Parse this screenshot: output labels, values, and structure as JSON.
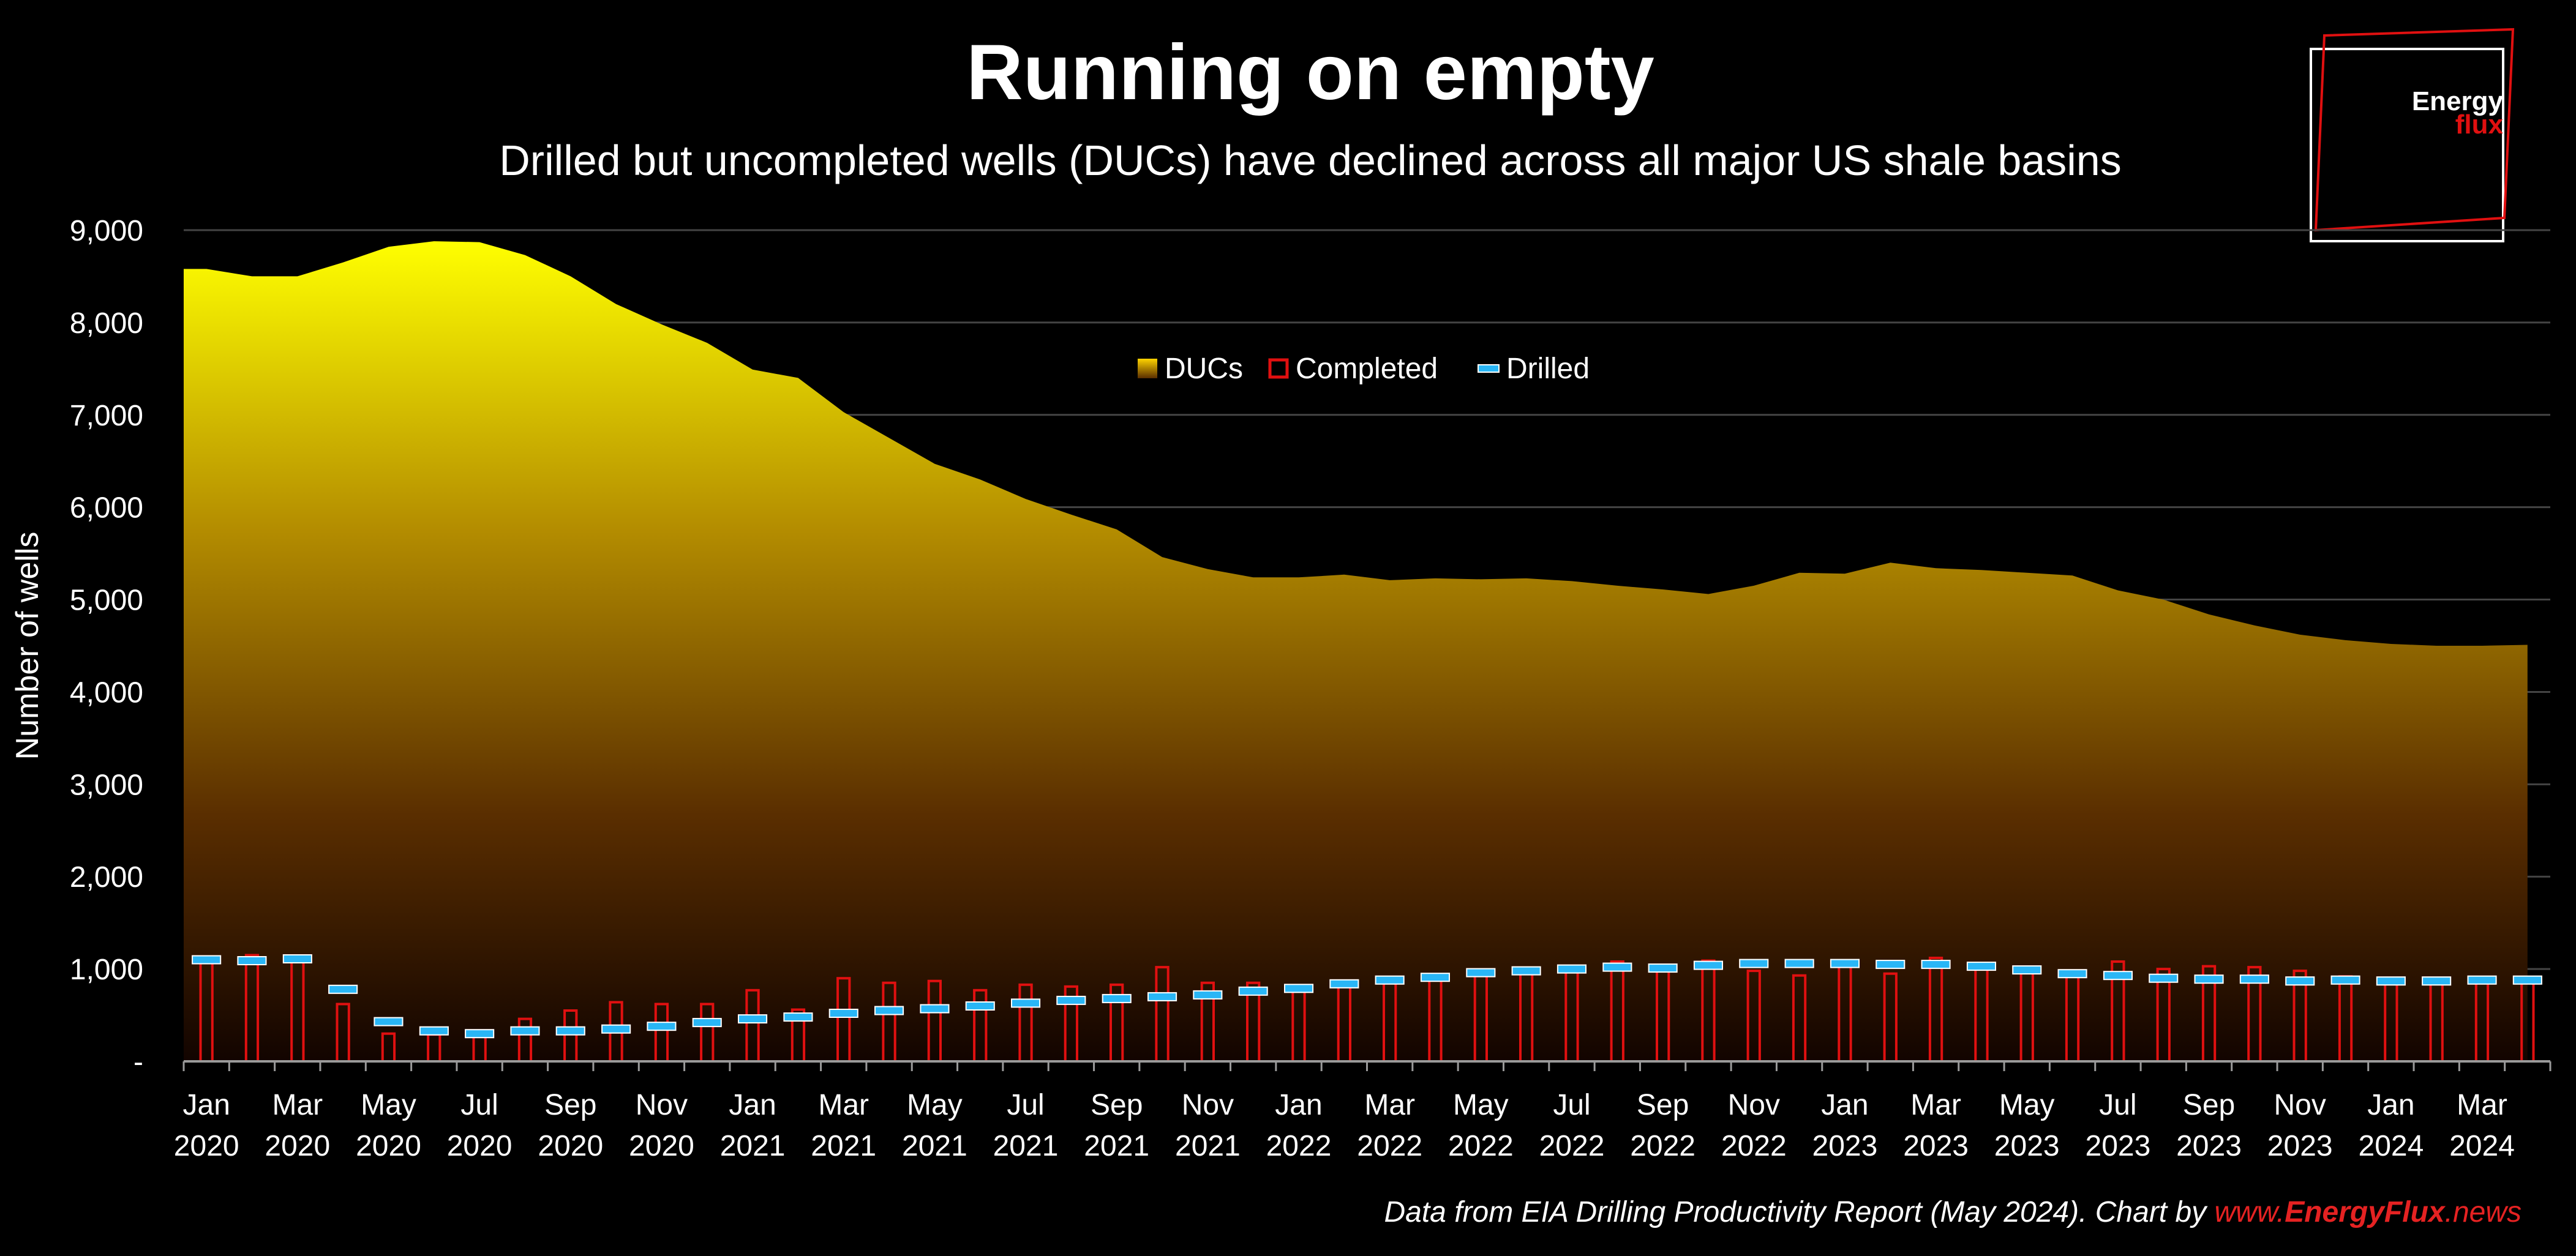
{
  "chart_data": {
    "type": "area",
    "title": "Running on empty",
    "subtitle": "Drilled but uncompleted wells (DUCs) have declined across all major US shale basins",
    "ylabel": "Number of wells",
    "ylim": [
      0,
      9000
    ],
    "yticks": [
      {
        "value": 0,
        "label": "-"
      },
      {
        "value": 1000,
        "label": "1,000"
      },
      {
        "value": 2000,
        "label": "2,000"
      },
      {
        "value": 3000,
        "label": "3,000"
      },
      {
        "value": 4000,
        "label": "4,000"
      },
      {
        "value": 5000,
        "label": "5,000"
      },
      {
        "value": 6000,
        "label": "6,000"
      },
      {
        "value": 7000,
        "label": "7,000"
      },
      {
        "value": 8000,
        "label": "8,000"
      },
      {
        "value": 9000,
        "label": "9,000"
      }
    ],
    "grid": true,
    "legend_position": "top-center",
    "x_tick_labels": [
      {
        "index": 0,
        "month": "Jan",
        "year": "2020"
      },
      {
        "index": 2,
        "month": "Mar",
        "year": "2020"
      },
      {
        "index": 4,
        "month": "May",
        "year": "2020"
      },
      {
        "index": 6,
        "month": "Jul",
        "year": "2020"
      },
      {
        "index": 8,
        "month": "Sep",
        "year": "2020"
      },
      {
        "index": 10,
        "month": "Nov",
        "year": "2020"
      },
      {
        "index": 12,
        "month": "Jan",
        "year": "2021"
      },
      {
        "index": 14,
        "month": "Mar",
        "year": "2021"
      },
      {
        "index": 16,
        "month": "May",
        "year": "2021"
      },
      {
        "index": 18,
        "month": "Jul",
        "year": "2021"
      },
      {
        "index": 20,
        "month": "Sep",
        "year": "2021"
      },
      {
        "index": 22,
        "month": "Nov",
        "year": "2021"
      },
      {
        "index": 24,
        "month": "Jan",
        "year": "2022"
      },
      {
        "index": 26,
        "month": "Mar",
        "year": "2022"
      },
      {
        "index": 28,
        "month": "May",
        "year": "2022"
      },
      {
        "index": 30,
        "month": "Jul",
        "year": "2022"
      },
      {
        "index": 32,
        "month": "Sep",
        "year": "2022"
      },
      {
        "index": 34,
        "month": "Nov",
        "year": "2022"
      },
      {
        "index": 36,
        "month": "Jan",
        "year": "2023"
      },
      {
        "index": 38,
        "month": "Mar",
        "year": "2023"
      },
      {
        "index": 40,
        "month": "May",
        "year": "2023"
      },
      {
        "index": 42,
        "month": "Jul",
        "year": "2023"
      },
      {
        "index": 44,
        "month": "Sep",
        "year": "2023"
      },
      {
        "index": 46,
        "month": "Nov",
        "year": "2023"
      },
      {
        "index": 48,
        "month": "Jan",
        "year": "2024"
      },
      {
        "index": 50,
        "month": "Mar",
        "year": "2024"
      }
    ],
    "series": [
      {
        "name": "DUCs",
        "kind": "area",
        "values": [
          8580,
          8500,
          8500,
          8650,
          8820,
          8880,
          8870,
          8730,
          8500,
          8200,
          7980,
          7780,
          7490,
          7400,
          7030,
          6750,
          6470,
          6300,
          6090,
          5920,
          5760,
          5460,
          5330,
          5240,
          5240,
          5270,
          5210,
          5230,
          5220,
          5230,
          5200,
          5150,
          5110,
          5060,
          5150,
          5290,
          5280,
          5400,
          5340,
          5320,
          5290,
          5260,
          5100,
          5000,
          4840,
          4720,
          4620,
          4560,
          4520,
          4500,
          4500,
          4510
        ]
      },
      {
        "name": "Completed",
        "kind": "bar",
        "values": [
          1110,
          1150,
          1110,
          620,
          300,
          290,
          300,
          460,
          550,
          640,
          620,
          620,
          770,
          560,
          900,
          850,
          870,
          770,
          830,
          810,
          830,
          1020,
          850,
          850,
          800,
          830,
          880,
          920,
          950,
          970,
          1010,
          1080,
          1040,
          1090,
          980,
          930,
          1060,
          950,
          1120,
          1040,
          1000,
          950,
          1080,
          1000,
          1030,
          1020,
          980,
          920,
          880,
          880,
          890,
          880
        ]
      },
      {
        "name": "Drilled",
        "kind": "marker",
        "values": [
          1100,
          1090,
          1110,
          780,
          430,
          330,
          300,
          330,
          330,
          350,
          380,
          420,
          460,
          480,
          520,
          550,
          570,
          600,
          630,
          660,
          680,
          700,
          720,
          760,
          790,
          840,
          880,
          910,
          960,
          980,
          1000,
          1020,
          1010,
          1040,
          1060,
          1060,
          1060,
          1050,
          1050,
          1030,
          990,
          950,
          930,
          900,
          890,
          890,
          870,
          880,
          870,
          870,
          880,
          880
        ]
      }
    ],
    "colors": {
      "duc_top": "#ffff00",
      "duc_mid": "#c8a000",
      "duc_bottom": "#1a0600",
      "completed": "#e01010",
      "drilled": "#29b6f6",
      "grid": "#444444",
      "axis": "#9a9a9a",
      "source_link": "#e52222"
    },
    "source": {
      "prefix": "Data from EIA Drilling Productivity Report (May 2024). Chart by ",
      "link_www": "www.",
      "link_brand": "EnergyFlux",
      "link_tld": ".news"
    }
  },
  "logo": {
    "line1": "Energy",
    "line2": "flux"
  }
}
